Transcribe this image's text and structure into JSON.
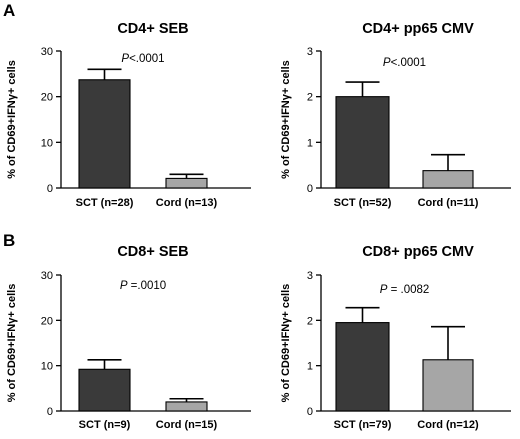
{
  "figure": {
    "panel_labels": [
      "A",
      "B"
    ]
  },
  "chart_data": [
    {
      "type": "bar",
      "title": "CD4+  SEB",
      "ylabel": "% of CD69+IFNγ+ cells",
      "p_label_prefix": "P",
      "p_label_value": "<.0001",
      "categories": [
        "SCT (n=28)",
        "Cord (n=13)"
      ],
      "values": [
        23.7,
        2.1
      ],
      "errors": [
        2.3,
        0.9
      ],
      "colors": [
        "#3a3a3a",
        "#a6a6a6"
      ],
      "ylim": [
        0,
        30
      ],
      "yticks": [
        0,
        10,
        20,
        30
      ],
      "ytick_labels": [
        "0",
        "10",
        "20",
        "30"
      ]
    },
    {
      "type": "bar",
      "title": "CD4+  pp65 CMV",
      "ylabel": "% of CD69+IFNγ+ cells",
      "p_label_prefix": "P",
      "p_label_value": "<.0001",
      "categories": [
        "SCT (n=52)",
        "Cord (n=11)"
      ],
      "values": [
        2.0,
        0.38
      ],
      "errors": [
        0.32,
        0.35
      ],
      "colors": [
        "#3a3a3a",
        "#a6a6a6"
      ],
      "ylim": [
        0,
        3
      ],
      "yticks": [
        0,
        1,
        2,
        3
      ],
      "ytick_labels": [
        "0",
        "1",
        "2",
        "3"
      ]
    },
    {
      "type": "bar",
      "title": "CD8+  SEB",
      "ylabel": "% of CD69+IFNγ+ cells",
      "p_label_prefix": "P",
      "p_label_value": " =.0010",
      "categories": [
        "SCT (n=9)",
        "Cord (n=15)"
      ],
      "values": [
        9.2,
        2.0
      ],
      "errors": [
        2.1,
        0.7
      ],
      "colors": [
        "#3a3a3a",
        "#a6a6a6"
      ],
      "ylim": [
        0,
        30
      ],
      "yticks": [
        0,
        10,
        20,
        30
      ],
      "ytick_labels": [
        "0",
        "10",
        "20",
        "30"
      ]
    },
    {
      "type": "bar",
      "title": "CD8+  pp65 CMV",
      "ylabel": "% of CD69+IFNγ+ cells",
      "p_label_prefix": "P",
      "p_label_value": " = .0082",
      "categories": [
        "SCT (n=79)",
        "Cord (n=12)"
      ],
      "values": [
        1.95,
        1.13
      ],
      "errors": [
        0.33,
        0.73
      ],
      "colors": [
        "#3a3a3a",
        "#a6a6a6"
      ],
      "ylim": [
        0,
        3
      ],
      "yticks": [
        0,
        1,
        2,
        3
      ],
      "ytick_labels": [
        "0",
        "1",
        "2",
        "3"
      ]
    }
  ]
}
